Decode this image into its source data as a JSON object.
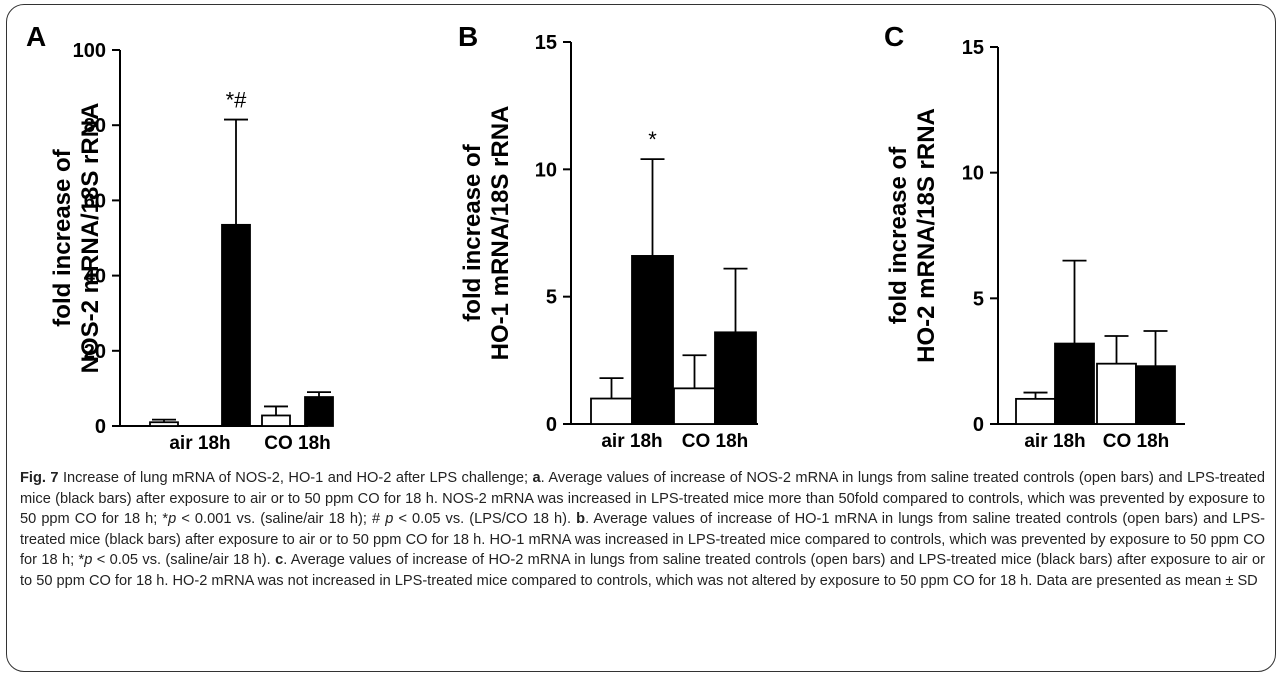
{
  "chart_data": [
    {
      "type": "bar",
      "panel": "A",
      "ylabel": [
        "fold increase of",
        "NOS-2 mRNA/18S rRNA"
      ],
      "ylim": [
        0,
        100
      ],
      "yticks": [
        "0",
        "20",
        "40",
        "60",
        "80",
        "100"
      ],
      "categories": [
        "air 18h",
        "CO 18h"
      ],
      "series": [
        {
          "values": [
            1.0,
            2.8
          ],
          "errors": [
            0.7,
            2.4
          ],
          "color": "#ffffff"
        },
        {
          "values": [
            53.5,
            7.7
          ],
          "errors": [
            28.0,
            1.3
          ],
          "color": "#000000"
        }
      ],
      "annotations": [
        {
          "text": "*#",
          "category": 0,
          "series": 1
        }
      ]
    },
    {
      "type": "bar",
      "panel": "B",
      "ylabel": [
        "fold increase of",
        "HO-1 mRNA/18S rRNA"
      ],
      "ylim": [
        0,
        15
      ],
      "yticks": [
        "0",
        "5",
        "10",
        "15"
      ],
      "categories": [
        "air 18h",
        "CO 18h"
      ],
      "series": [
        {
          "values": [
            1.0,
            1.4
          ],
          "errors": [
            0.8,
            1.3
          ],
          "color": "#ffffff"
        },
        {
          "values": [
            6.6,
            3.6
          ],
          "errors": [
            3.8,
            2.5
          ],
          "color": "#000000"
        }
      ],
      "annotations": [
        {
          "text": "*",
          "category": 0,
          "series": 1
        }
      ]
    },
    {
      "type": "bar",
      "panel": "C",
      "ylabel": [
        "fold increase of",
        "HO-2 mRNA/18S rRNA"
      ],
      "ylim": [
        0,
        15
      ],
      "yticks": [
        "0",
        "5",
        "10",
        "15"
      ],
      "categories": [
        "air 18h",
        "CO 18h"
      ],
      "series": [
        {
          "values": [
            1.0,
            2.4
          ],
          "errors": [
            0.25,
            1.1
          ],
          "color": "#ffffff"
        },
        {
          "values": [
            3.2,
            2.3
          ],
          "errors": [
            3.3,
            1.4
          ],
          "color": "#000000"
        }
      ],
      "annotations": []
    }
  ],
  "caption": {
    "fig_label": "Fig. 7",
    "parts": [
      {
        "t": "text",
        "v": " Increase of lung mRNA of NOS-2, HO-1 and HO-2 after LPS challenge; "
      },
      {
        "t": "bold",
        "v": "a"
      },
      {
        "t": "text",
        "v": ". Average values of increase of NOS-2 mRNA in lungs from saline treated controls (open bars) and LPS-treated mice (black bars) after exposure to air or to 50 ppm CO for 18 h. NOS-2 mRNA was increased in LPS-treated mice more than 50fold compared to controls, which was prevented by exposure to 50 ppm CO for 18 h; *"
      },
      {
        "t": "italic",
        "v": "p"
      },
      {
        "t": "text",
        "v": " < 0.001 vs. (saline/air 18 h); # "
      },
      {
        "t": "italic",
        "v": "p"
      },
      {
        "t": "text",
        "v": " < 0.05 vs. (LPS/CO 18 h). "
      },
      {
        "t": "bold",
        "v": "b"
      },
      {
        "t": "text",
        "v": ". Average values of increase of HO-1 mRNA in lungs from saline treated controls (open bars) and LPS-treated mice (black bars) after exposure to air or to 50 ppm CO for 18 h. HO-1 mRNA was increased in LPS-treated mice compared to controls, which was prevented by exposure to 50 ppm CO for 18 h; *"
      },
      {
        "t": "italic",
        "v": "p"
      },
      {
        "t": "text",
        "v": " < 0.05 vs. (saline/air 18 h). "
      },
      {
        "t": "bold",
        "v": "c"
      },
      {
        "t": "text",
        "v": ". Average values of increase of HO-2 mRNA in lungs from saline treated controls (open bars) and LPS-treated mice (black bars) after exposure to air or to 50 ppm CO for 18 h. HO-2 mRNA was not increased in LPS-treated mice compared to controls, which was not altered by exposure to 50 ppm CO for 18 h. Data are presented as mean ± SD"
      }
    ]
  }
}
